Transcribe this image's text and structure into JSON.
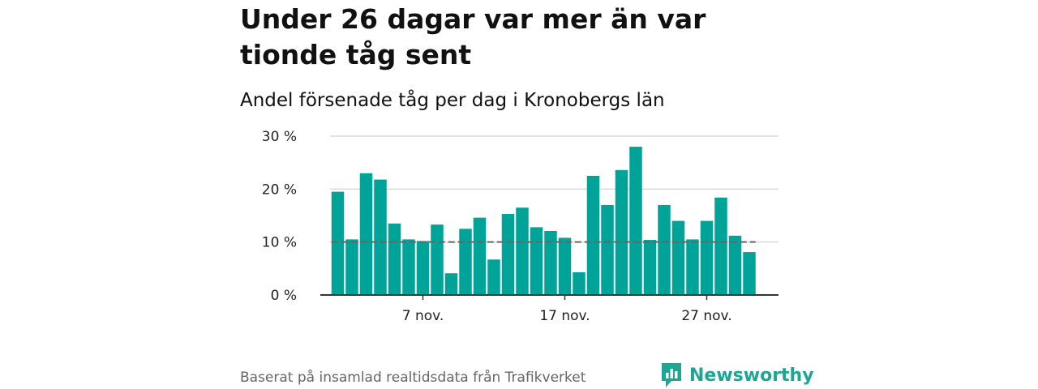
{
  "header": {
    "title": "Under 26 dagar var mer än var tionde tåg sent",
    "subtitle": "Andel försenade tåg per dag i Kronobergs län"
  },
  "footer": {
    "source": "Baserat på insamlad realtidsdata från Trafikverket",
    "brand": "Newsworthy",
    "brand_icon": "newsworthy-logo-icon"
  },
  "colors": {
    "bar": "#00a398",
    "reference_line": "#666666",
    "grid": "#d9d9d9",
    "axis": "#333333",
    "brand": "#1ea593"
  },
  "chart_data": {
    "type": "bar",
    "x_start_day": 1,
    "x_month": "nov.",
    "values": [
      19.5,
      10.5,
      23,
      21.8,
      13.5,
      10.5,
      10.2,
      13.3,
      4.1,
      12.5,
      14.6,
      6.7,
      15.3,
      16.5,
      12.8,
      12.1,
      10.8,
      4.3,
      22.5,
      17.0,
      23.6,
      28.0,
      10.4,
      17.0,
      14.0,
      10.5,
      14.0,
      18.4,
      11.2,
      8.1
    ],
    "reference_value": 10,
    "ylim": [
      0,
      30
    ],
    "y_ticks": [
      {
        "value": 0,
        "label": "0 %"
      },
      {
        "value": 10,
        "label": "10 %"
      },
      {
        "value": 20,
        "label": "20 %"
      },
      {
        "value": 30,
        "label": "30 %"
      }
    ],
    "x_ticks": [
      {
        "index": 6,
        "label": "7 nov."
      },
      {
        "index": 16,
        "label": "17 nov."
      },
      {
        "index": 26,
        "label": "27 nov."
      }
    ],
    "grid": true,
    "legend": "none"
  }
}
